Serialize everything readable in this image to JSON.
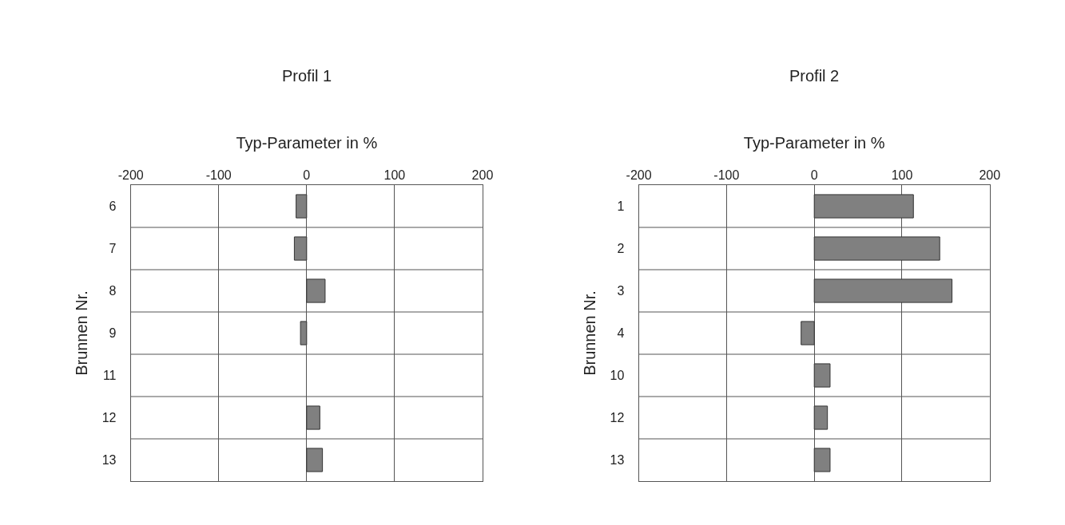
{
  "chart_data": [
    {
      "type": "bar",
      "orientation": "horizontal",
      "title": "Profil 1",
      "xlabel": "Typ-Parameter in %",
      "ylabel": "Brunnen Nr.",
      "categories": [
        "6",
        "7",
        "8",
        "9",
        "11",
        "12",
        "13"
      ],
      "values": [
        -12,
        -14,
        21,
        -7,
        null,
        15,
        18
      ],
      "color": "#808080",
      "xlim": [
        -200,
        200
      ],
      "xticks": [
        -200,
        -100,
        0,
        100,
        200
      ],
      "grid": true
    },
    {
      "type": "bar",
      "orientation": "horizontal",
      "title": "Profil 2",
      "xlabel": "Typ-Parameter in %",
      "ylabel": "Brunnen Nr.",
      "categories": [
        "1",
        "2",
        "3",
        "4",
        "10",
        "12",
        "13"
      ],
      "values": [
        113,
        143,
        157,
        -15,
        18,
        15,
        18
      ],
      "color": "#808080",
      "xlim": [
        -200,
        200
      ],
      "xticks": [
        -200,
        -100,
        0,
        100,
        200
      ],
      "grid": true
    }
  ]
}
